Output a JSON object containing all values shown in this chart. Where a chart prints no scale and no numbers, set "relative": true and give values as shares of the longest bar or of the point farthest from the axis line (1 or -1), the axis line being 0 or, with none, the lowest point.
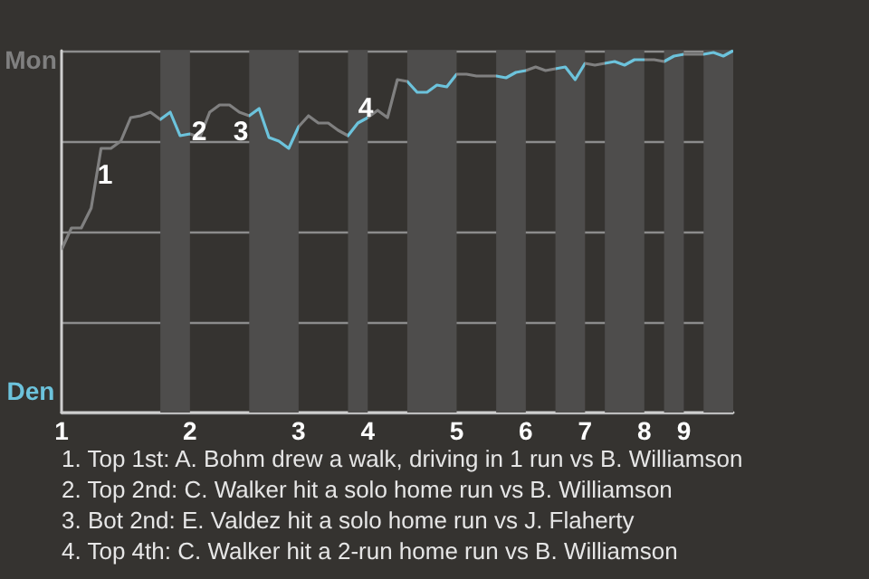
{
  "chart_data": {
    "type": "line",
    "relative": true,
    "categories": [
      "1",
      null,
      null,
      null,
      null,
      null,
      null,
      null,
      null,
      null,
      null,
      null,
      null,
      "2",
      null,
      null,
      null,
      null,
      null,
      null,
      null,
      null,
      null,
      null,
      "3",
      null,
      null,
      null,
      null,
      null,
      null,
      "4",
      null,
      null,
      null,
      null,
      null,
      null,
      null,
      null,
      "5",
      null,
      null,
      null,
      null,
      null,
      null,
      "6",
      null,
      null,
      null,
      null,
      null,
      "7",
      null,
      null,
      null,
      null,
      null,
      "8",
      null,
      null,
      null,
      "9",
      null,
      null,
      null,
      null,
      null
    ],
    "grid": "y",
    "marker": "none",
    "values": [
      0.45,
      0.51,
      0.51,
      0.565,
      0.73,
      0.73,
      0.75,
      0.815,
      0.82,
      0.83,
      0.81,
      0.83,
      0.765,
      0.77,
      0.76,
      0.83,
      0.85,
      0.85,
      0.83,
      0.82,
      0.84,
      0.76,
      0.75,
      0.73,
      0.79,
      0.82,
      0.8,
      0.8,
      0.78,
      0.765,
      0.8,
      0.815,
      0.835,
      0.815,
      0.92,
      0.915,
      0.885,
      0.885,
      0.905,
      0.9,
      0.935,
      0.935,
      0.93,
      0.93,
      0.93,
      0.925,
      0.94,
      0.945,
      0.955,
      0.945,
      0.95,
      0.955,
      0.92,
      0.965,
      0.96,
      0.965,
      0.97,
      0.96,
      0.975,
      0.975,
      0.975,
      0.97,
      0.985,
      0.99,
      0.99,
      0.99,
      0.995,
      0.985,
      1.0
    ],
    "colors": [
      "#808080",
      "#808080",
      "#808080",
      "#808080",
      "#808080",
      "#808080",
      "#808080",
      "#808080",
      "#808080",
      "#808080",
      "#6cc3dc",
      "#6cc3dc",
      "#6cc3dc",
      "#808080",
      "#808080",
      "#808080",
      "#808080",
      "#808080",
      "#808080",
      "#6cc3dc",
      "#6cc3dc",
      "#6cc3dc",
      "#6cc3dc",
      "#6cc3dc",
      "#808080",
      "#808080",
      "#808080",
      "#808080",
      "#808080",
      "#6cc3dc",
      "#6cc3dc",
      "#808080",
      "#808080",
      "#808080",
      "#808080",
      "#6cc3dc",
      "#6cc3dc",
      "#6cc3dc",
      "#6cc3dc",
      "#6cc3dc",
      "#808080",
      "#808080",
      "#808080",
      "#808080",
      "#6cc3dc",
      "#6cc3dc",
      "#6cc3dc",
      "#808080",
      "#808080",
      "#808080",
      "#6cc3dc",
      "#6cc3dc",
      "#6cc3dc",
      "#808080",
      "#808080",
      "#6cc3dc",
      "#6cc3dc",
      "#6cc3dc",
      "#6cc3dc",
      "#808080",
      "#808080",
      "#6cc3dc",
      "#6cc3dc",
      "#808080",
      "#808080",
      "#6cc3dc",
      "#6cc3dc",
      "#6cc3dc",
      "#6cc3dc"
    ],
    "annotations": [
      "Mon",
      "Den",
      "1",
      "2",
      "3",
      "4",
      "1. Top 1st: A. Bohm drew a walk, driving in 1 run vs B. Williamson",
      "2. Top 2nd: C. Walker hit a solo home run vs B. Williamson",
      "3. Bot 2nd: E. Valdez hit a solo home run vs J. Flaherty",
      "4. Top 4th: C. Walker hit a 2-run home run vs B. Williamson"
    ]
  }
}
